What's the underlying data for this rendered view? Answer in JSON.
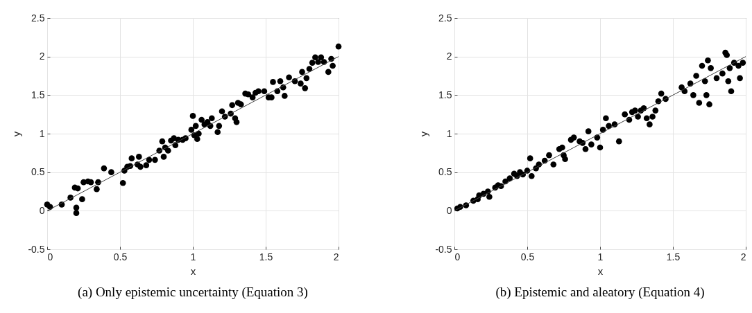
{
  "chart_data": [
    {
      "type": "scatter",
      "annotations": [
        "(a) Only epistemic uncertainty (Equation 3)"
      ],
      "xlabel": "x",
      "ylabel": "y",
      "xlim": [
        0,
        2
      ],
      "ylim": [
        -0.5,
        2.5
      ],
      "xticks": [
        0,
        0.5,
        1,
        1.5,
        2
      ],
      "yticks": [
        -0.5,
        0,
        0.5,
        1,
        1.5,
        2,
        2.5
      ],
      "grid": true,
      "series": [
        {
          "marker": "circle",
          "color": "#000000",
          "x": [
            0,
            0.02,
            0.1,
            0.16,
            0.19,
            0.2,
            0.2,
            0.21,
            0.24,
            0.25,
            0.28,
            0.3,
            0.34,
            0.35,
            0.39,
            0.44,
            0.52,
            0.53,
            0.55,
            0.57,
            0.58,
            0.62,
            0.63,
            0.64,
            0.68,
            0.7,
            0.74,
            0.77,
            0.79,
            0.8,
            0.81,
            0.83,
            0.85,
            0.87,
            0.88,
            0.9,
            0.93,
            0.95,
            0.99,
            1.0,
            1.01,
            1.02,
            1.03,
            1.04,
            1.06,
            1.08,
            1.1,
            1.12,
            1.13,
            1.17,
            1.18,
            1.2,
            1.22,
            1.26,
            1.27,
            1.29,
            1.3,
            1.31,
            1.33,
            1.36,
            1.38,
            1.41,
            1.43,
            1.45,
            1.49,
            1.52,
            1.54,
            1.55,
            1.58,
            1.6,
            1.62,
            1.63,
            1.66,
            1.7,
            1.74,
            1.75,
            1.77,
            1.78,
            1.8,
            1.82,
            1.84,
            1.86,
            1.88,
            1.9,
            1.93,
            1.95,
            1.96,
            2.0
          ],
          "values": [
            0.08,
            0.05,
            0.08,
            0.17,
            0.3,
            0.04,
            -0.03,
            0.29,
            0.15,
            0.37,
            0.38,
            0.37,
            0.28,
            0.37,
            0.55,
            0.5,
            0.36,
            0.52,
            0.57,
            0.58,
            0.68,
            0.6,
            0.7,
            0.57,
            0.59,
            0.66,
            0.66,
            0.78,
            0.9,
            0.7,
            0.82,
            0.78,
            0.91,
            0.94,
            0.85,
            0.92,
            0.92,
            0.94,
            1.05,
            1.23,
            0.98,
            1.1,
            0.93,
            1.0,
            1.18,
            1.12,
            1.15,
            1.1,
            1.2,
            1.02,
            1.1,
            1.29,
            1.22,
            1.26,
            1.37,
            1.2,
            1.15,
            1.4,
            1.38,
            1.52,
            1.51,
            1.47,
            1.53,
            1.55,
            1.55,
            1.47,
            1.47,
            1.67,
            1.55,
            1.68,
            1.6,
            1.49,
            1.73,
            1.68,
            1.65,
            1.8,
            1.59,
            1.72,
            1.84,
            1.92,
            1.99,
            1.93,
            1.99,
            1.93,
            1.8,
            1.97,
            1.88,
            2.13
          ]
        },
        {
          "type": "line",
          "color": "#404040",
          "x": [
            0,
            2
          ],
          "values": [
            0,
            2
          ]
        }
      ]
    },
    {
      "type": "scatter",
      "annotations": [
        "(b) Epistemic and aleatory (Equation 4)"
      ],
      "xlabel": "x",
      "ylabel": "y",
      "xlim": [
        0,
        2
      ],
      "ylim": [
        -0.5,
        2.5
      ],
      "xticks": [
        0,
        0.5,
        1,
        1.5,
        2
      ],
      "yticks": [
        -0.5,
        0,
        0.5,
        1,
        1.5,
        2,
        2.5
      ],
      "grid": true,
      "series": [
        {
          "marker": "circle",
          "color": "#000000",
          "x": [
            0.02,
            0.04,
            0.08,
            0.13,
            0.16,
            0.17,
            0.2,
            0.23,
            0.24,
            0.28,
            0.3,
            0.32,
            0.35,
            0.38,
            0.41,
            0.43,
            0.45,
            0.47,
            0.5,
            0.52,
            0.53,
            0.56,
            0.58,
            0.62,
            0.65,
            0.68,
            0.72,
            0.74,
            0.75,
            0.76,
            0.8,
            0.82,
            0.86,
            0.88,
            0.9,
            0.92,
            0.94,
            0.98,
            1.0,
            1.02,
            1.04,
            1.06,
            1.1,
            1.13,
            1.17,
            1.2,
            1.22,
            1.24,
            1.26,
            1.28,
            1.3,
            1.32,
            1.34,
            1.36,
            1.38,
            1.4,
            1.42,
            1.45,
            1.56,
            1.58,
            1.62,
            1.64,
            1.66,
            1.68,
            1.7,
            1.72,
            1.73,
            1.74,
            1.75,
            1.76,
            1.8,
            1.84,
            1.86,
            1.87,
            1.88,
            1.89,
            1.9,
            1.92,
            1.95,
            1.96,
            1.98
          ],
          "values": [
            0.03,
            0.05,
            0.07,
            0.13,
            0.15,
            0.2,
            0.22,
            0.25,
            0.18,
            0.3,
            0.33,
            0.32,
            0.38,
            0.42,
            0.48,
            0.45,
            0.5,
            0.47,
            0.52,
            0.68,
            0.45,
            0.55,
            0.6,
            0.65,
            0.72,
            0.6,
            0.8,
            0.82,
            0.72,
            0.67,
            0.92,
            0.95,
            0.9,
            0.88,
            0.8,
            1.03,
            0.86,
            0.95,
            0.82,
            1.05,
            1.2,
            1.1,
            1.12,
            0.9,
            1.25,
            1.18,
            1.28,
            1.3,
            1.22,
            1.3,
            1.33,
            1.2,
            1.12,
            1.22,
            1.3,
            1.42,
            1.52,
            1.45,
            1.6,
            1.55,
            1.65,
            1.5,
            1.75,
            1.4,
            1.88,
            1.68,
            1.5,
            1.95,
            1.38,
            1.85,
            1.72,
            1.78,
            2.05,
            2.02,
            1.68,
            1.85,
            1.55,
            1.92,
            1.88,
            1.72,
            1.92
          ]
        },
        {
          "type": "line",
          "color": "#404040",
          "x": [
            0,
            2
          ],
          "values": [
            0,
            2
          ]
        }
      ]
    }
  ]
}
